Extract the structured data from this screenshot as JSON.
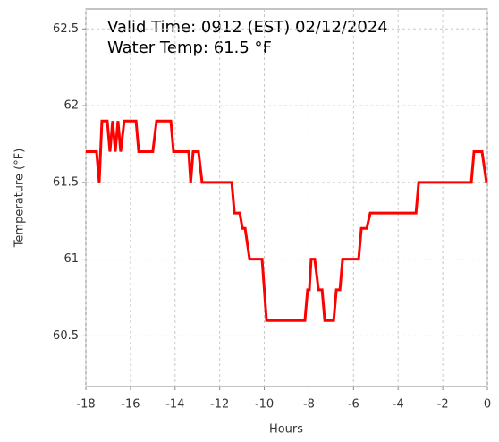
{
  "chart_data": {
    "type": "line",
    "annotations": [
      "Valid Time: 0912 (EST) 02/12/2024",
      "Water Temp: 61.5 °F"
    ],
    "x_label": "Hours",
    "y_label": "Temperature (°F)",
    "xlim": [
      -18,
      0
    ],
    "xticks": [
      -18,
      -16,
      -14,
      -12,
      -10,
      -8,
      -6,
      -4,
      -2,
      0
    ],
    "ylim": [
      60.17,
      62.63
    ],
    "yticks": [
      60.5,
      61,
      61.5,
      62,
      62.5
    ],
    "grid": true,
    "series": [
      {
        "name": "Water Temp",
        "color": "#ff0000",
        "x": [
          -18,
          -17.52,
          -17.4,
          -17.28,
          -17.04,
          -16.92,
          -16.8,
          -16.68,
          -16.56,
          -16.44,
          -16.28,
          -15.75,
          -15.63,
          -15.0,
          -14.83,
          -14.19,
          -14.07,
          -13.39,
          -13.3,
          -13.19,
          -12.95,
          -12.79,
          -11.46,
          -11.34,
          -11.1,
          -10.98,
          -10.86,
          -10.66,
          -10.1,
          -9.9,
          -8.18,
          -8.06,
          -7.98,
          -7.9,
          -7.74,
          -7.57,
          -7.41,
          -7.29,
          -6.89,
          -6.77,
          -6.61,
          -6.49,
          -5.77,
          -5.65,
          -5.41,
          -5.25,
          -3.2,
          -3.08,
          -0.72,
          -0.6,
          -0.24,
          -0.04
        ],
        "values": [
          61.7,
          61.7,
          61.5,
          61.9,
          61.9,
          61.7,
          61.9,
          61.7,
          61.9,
          61.7,
          61.9,
          61.9,
          61.7,
          61.7,
          61.9,
          61.9,
          61.7,
          61.7,
          61.5,
          61.7,
          61.7,
          61.5,
          61.5,
          61.3,
          61.3,
          61.2,
          61.2,
          61.0,
          61.0,
          60.6,
          60.6,
          60.8,
          60.8,
          61.0,
          61.0,
          60.8,
          60.8,
          60.6,
          60.6,
          60.8,
          60.8,
          61.0,
          61.0,
          61.2,
          61.2,
          61.3,
          61.3,
          61.5,
          61.5,
          61.7,
          61.7,
          61.5
        ]
      }
    ]
  }
}
